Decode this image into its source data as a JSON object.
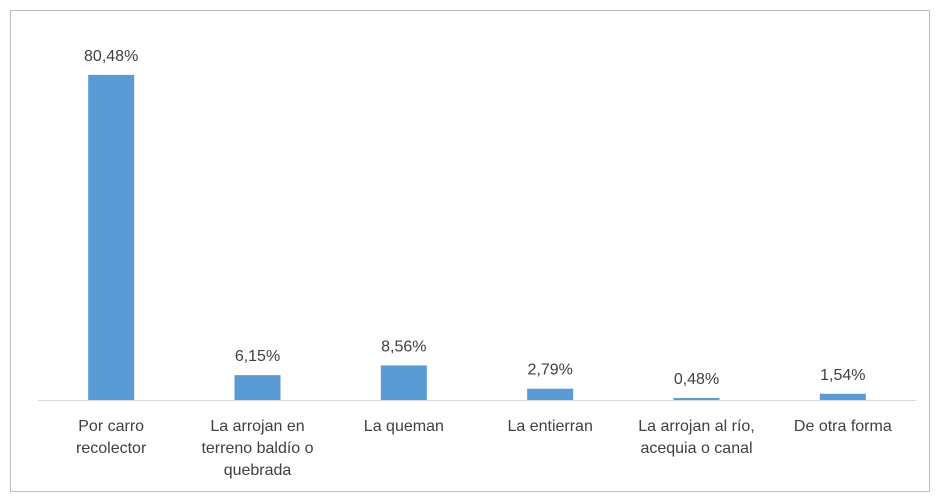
{
  "chart_data": {
    "type": "bar",
    "categories": [
      "Por carro recolector",
      "La arrojan en terreno baldío o quebrada",
      "La queman",
      "La entierran",
      "La arrojan al río, acequia o canal",
      "De otra forma"
    ],
    "values": [
      80.48,
      6.15,
      8.56,
      2.79,
      0.48,
      1.54
    ],
    "value_labels": [
      "80,48%",
      "6,15%",
      "8,56%",
      "2,79%",
      "0,48%",
      "1,54%"
    ],
    "color": "#5b9bd5"
  }
}
